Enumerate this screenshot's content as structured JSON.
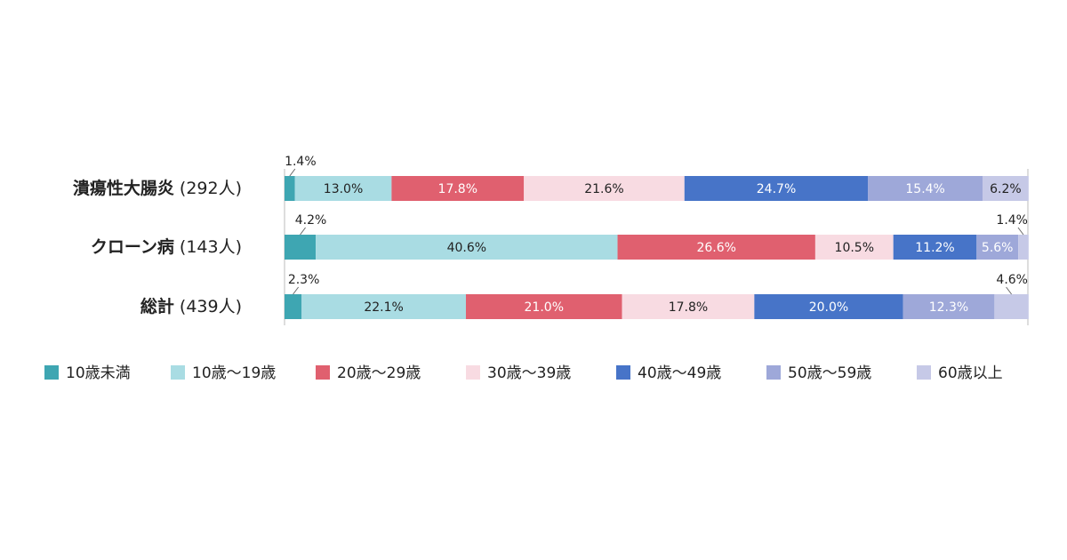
{
  "chart_data": {
    "type": "stacked-bar-horizontal",
    "categories": [
      "潰瘍性大腸炎",
      "クローン病",
      "総計"
    ],
    "category_counts": [
      "(292人)",
      "(143人)",
      "(439人)"
    ],
    "xlim": [
      0,
      100
    ],
    "series": [
      {
        "name": "10歳未満",
        "color": "#3ea6b2",
        "values": [
          1.4,
          4.2,
          2.3
        ],
        "value_labels": [
          "1.4%",
          "4.2%",
          "2.3%"
        ]
      },
      {
        "name": "10歳〜19歳",
        "color": "#a9dce3",
        "values": [
          13.0,
          40.6,
          22.1
        ],
        "value_labels": [
          "13.0%",
          "40.6%",
          "22.1%"
        ]
      },
      {
        "name": "20歳〜29歳",
        "color": "#e0606f",
        "values": [
          17.8,
          26.6,
          21.0
        ],
        "value_labels": [
          "17.8%",
          "26.6%",
          "21.0%"
        ]
      },
      {
        "name": "30歳〜39歳",
        "color": "#f8dbe2",
        "values": [
          21.6,
          10.5,
          17.8
        ],
        "value_labels": [
          "21.6%",
          "10.5%",
          "17.8%"
        ]
      },
      {
        "name": "40歳〜49歳",
        "color": "#4774c8",
        "values": [
          24.7,
          11.2,
          20.0
        ],
        "value_labels": [
          "24.7%",
          "11.2%",
          "20.0%"
        ]
      },
      {
        "name": "50歳〜59歳",
        "color": "#9ea8d9",
        "values": [
          15.4,
          5.6,
          12.3
        ],
        "value_labels": [
          "15.4%",
          "5.6%",
          "12.3%"
        ]
      },
      {
        "name": "60歳以上",
        "color": "#c6c9e7",
        "values": [
          6.2,
          1.4,
          4.6
        ],
        "value_labels": [
          "6.2%",
          "1.4%",
          "4.6%"
        ]
      }
    ]
  }
}
